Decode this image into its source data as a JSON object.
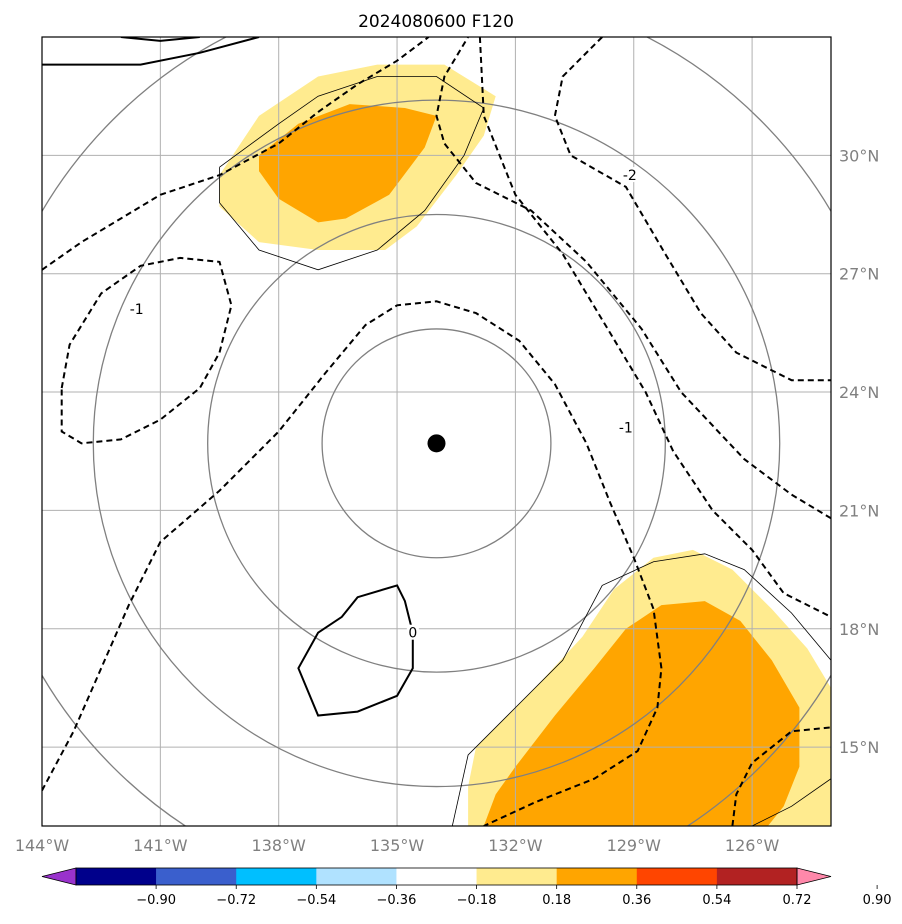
{
  "chart_data": {
    "type": "map-contour",
    "title": "2024080600 F120",
    "map": {
      "lon_range": [
        -144,
        -124
      ],
      "lat_range": [
        13,
        33
      ],
      "x_ticks": [
        {
          "value": -144,
          "label": "144°W"
        },
        {
          "value": -141,
          "label": "141°W"
        },
        {
          "value": -138,
          "label": "138°W"
        },
        {
          "value": -135,
          "label": "135°W"
        },
        {
          "value": -132,
          "label": "132°W"
        },
        {
          "value": -129,
          "label": "129°W"
        },
        {
          "value": -126,
          "label": "126°W"
        }
      ],
      "y_ticks": [
        {
          "value": 30,
          "label": "30°N"
        },
        {
          "value": 27,
          "label": "27°N"
        },
        {
          "value": 24,
          "label": "24°N"
        },
        {
          "value": 21,
          "label": "21°N"
        },
        {
          "value": 18,
          "label": "18°N"
        },
        {
          "value": 15,
          "label": "15°N"
        }
      ],
      "grid": true,
      "y_tick_side": "right"
    },
    "center_marker": {
      "lon": -134,
      "lat": 22.7,
      "color": "#000000"
    },
    "range_rings": {
      "center_lon": -134,
      "center_lat": 22.7,
      "radii_deg": [
        2.9,
        5.8,
        8.7,
        11.6
      ],
      "color": "#808080"
    },
    "filled_contours": [
      {
        "level": 0.18,
        "color": "#ffeb8f",
        "polygon": [
          [
            -139.5,
            29.5
          ],
          [
            -138.5,
            31.0
          ],
          [
            -137.0,
            32.0
          ],
          [
            -135.5,
            32.3
          ],
          [
            -133.8,
            32.3
          ],
          [
            -132.5,
            31.5
          ],
          [
            -132.8,
            30.5
          ],
          [
            -133.5,
            29.5
          ],
          [
            -134.5,
            28.2
          ],
          [
            -135.3,
            27.6
          ],
          [
            -137.0,
            27.6
          ],
          [
            -138.5,
            27.8
          ],
          [
            -139.5,
            28.7
          ]
        ]
      },
      {
        "level": 0.36,
        "color": "#ffa500",
        "polygon": [
          [
            -138.5,
            30.0
          ],
          [
            -137.5,
            30.8
          ],
          [
            -136.2,
            31.3
          ],
          [
            -134.8,
            31.2
          ],
          [
            -134.0,
            31.0
          ],
          [
            -134.3,
            30.2
          ],
          [
            -135.2,
            29.0
          ],
          [
            -136.3,
            28.4
          ],
          [
            -137.0,
            28.3
          ],
          [
            -138.0,
            28.9
          ],
          [
            -138.5,
            29.6
          ]
        ]
      },
      {
        "level": 0.18,
        "color": "#ffeb8f",
        "polygon": [
          [
            -133.0,
            15.0
          ],
          [
            -131.5,
            16.5
          ],
          [
            -130.3,
            17.8
          ],
          [
            -129.5,
            19.0
          ],
          [
            -128.5,
            19.8
          ],
          [
            -127.5,
            20.0
          ],
          [
            -126.5,
            19.5
          ],
          [
            -125.5,
            18.5
          ],
          [
            -124.6,
            17.5
          ],
          [
            -124.0,
            16.5
          ],
          [
            -124.0,
            13.0
          ],
          [
            -133.2,
            13.0
          ],
          [
            -133.2,
            14.0
          ]
        ]
      },
      {
        "level": 0.36,
        "color": "#ffa500",
        "polygon": [
          [
            -132.0,
            14.5
          ],
          [
            -131.0,
            15.8
          ],
          [
            -130.0,
            17.0
          ],
          [
            -129.2,
            18.0
          ],
          [
            -128.3,
            18.6
          ],
          [
            -127.2,
            18.7
          ],
          [
            -126.3,
            18.2
          ],
          [
            -125.5,
            17.2
          ],
          [
            -124.8,
            16.0
          ],
          [
            -124.8,
            14.5
          ],
          [
            -125.2,
            13.5
          ],
          [
            -125.6,
            13.0
          ],
          [
            -132.8,
            13.0
          ],
          [
            -132.5,
            13.8
          ]
        ]
      }
    ],
    "boundary_lines": [
      {
        "style": "thin",
        "points": [
          [
            -139.5,
            29.7
          ],
          [
            -138.0,
            30.8
          ],
          [
            -137.0,
            31.5
          ],
          [
            -135.5,
            32.0
          ],
          [
            -134.0,
            32.0
          ],
          [
            -132.8,
            31.2
          ],
          [
            -133.3,
            30.0
          ],
          [
            -134.3,
            28.6
          ],
          [
            -135.5,
            27.6
          ],
          [
            -137.0,
            27.1
          ],
          [
            -138.5,
            27.6
          ],
          [
            -139.5,
            28.8
          ],
          [
            -139.5,
            29.7
          ]
        ]
      },
      {
        "style": "thin",
        "points": [
          [
            -133.6,
            13.0
          ],
          [
            -133.2,
            14.8
          ],
          [
            -132.0,
            16.0
          ],
          [
            -130.8,
            17.2
          ],
          [
            -129.8,
            19.1
          ],
          [
            -128.5,
            19.7
          ],
          [
            -127.2,
            19.9
          ],
          [
            -126.2,
            19.5
          ],
          [
            -125.0,
            18.4
          ],
          [
            -124.0,
            17.2
          ]
        ]
      },
      {
        "style": "thin",
        "points": [
          [
            -124.0,
            14.2
          ],
          [
            -125.0,
            13.5
          ],
          [
            -126.0,
            13.0
          ]
        ]
      }
    ],
    "dashed_contours": [
      {
        "label": "-1",
        "label_at": [
          -141.6,
          26.1
        ],
        "points": [
          [
            -144.0,
            13.9
          ],
          [
            -143.2,
            15.4
          ],
          [
            -142.5,
            17.0
          ],
          [
            -141.8,
            18.6
          ],
          [
            -141.0,
            20.2
          ],
          [
            -139.5,
            21.5
          ],
          [
            -138.0,
            23.0
          ],
          [
            -136.8,
            24.5
          ],
          [
            -135.8,
            25.7
          ],
          [
            -135.0,
            26.2
          ],
          [
            -134.0,
            26.3
          ],
          [
            -133.0,
            26.0
          ],
          [
            -131.9,
            25.3
          ],
          [
            -131.0,
            24.2
          ],
          [
            -130.2,
            22.7
          ],
          [
            -129.6,
            21.2
          ],
          [
            -129.0,
            19.8
          ],
          [
            -128.5,
            18.5
          ],
          [
            -128.3,
            17.0
          ],
          [
            -128.4,
            16.0
          ],
          [
            -128.9,
            14.9
          ],
          [
            -130.0,
            14.2
          ],
          [
            -131.5,
            13.6
          ],
          [
            -132.8,
            13.0
          ]
        ]
      },
      {
        "label": "-1",
        "label_at": [
          -129.2,
          23.1
        ],
        "points": [
          [
            -132.9,
            33.0
          ],
          [
            -132.8,
            31.0
          ],
          [
            -132.0,
            29.0
          ],
          [
            -130.8,
            27.5
          ],
          [
            -129.6,
            25.5
          ],
          [
            -128.7,
            24.0
          ],
          [
            -128.0,
            22.5
          ],
          [
            -127.0,
            21.0
          ],
          [
            -126.0,
            20.0
          ],
          [
            -125.2,
            18.9
          ],
          [
            -124.0,
            18.3
          ]
        ]
      },
      {
        "label": "-2",
        "label_at": [
          -129.1,
          29.5
        ],
        "points": [
          [
            -129.8,
            33.0
          ],
          [
            -130.8,
            32.0
          ],
          [
            -131.0,
            31.0
          ],
          [
            -130.6,
            30.0
          ],
          [
            -129.2,
            29.2
          ],
          [
            -128.2,
            27.5
          ],
          [
            -127.3,
            26.0
          ],
          [
            -126.4,
            25.0
          ],
          [
            -125.0,
            24.3
          ],
          [
            -124.0,
            24.3
          ]
        ]
      },
      {
        "label": "",
        "label_at": null,
        "points": [
          [
            -124.0,
            20.8
          ],
          [
            -125.0,
            21.4
          ],
          [
            -126.2,
            22.3
          ],
          [
            -127.8,
            24.0
          ],
          [
            -128.8,
            25.6
          ],
          [
            -130.2,
            27.3
          ],
          [
            -131.6,
            28.6
          ],
          [
            -133.0,
            29.3
          ],
          [
            -133.8,
            30.3
          ],
          [
            -134.0,
            31.0
          ],
          [
            -133.8,
            32.0
          ],
          [
            -133.2,
            33.0
          ]
        ]
      },
      {
        "label": "",
        "label_at": null,
        "points": [
          [
            -144.0,
            27.1
          ],
          [
            -143.0,
            27.8
          ],
          [
            -142.0,
            28.4
          ],
          [
            -141.0,
            29.0
          ],
          [
            -139.5,
            29.5
          ],
          [
            -138.0,
            30.3
          ],
          [
            -137.0,
            31.1
          ],
          [
            -136.0,
            31.8
          ],
          [
            -135.0,
            32.4
          ],
          [
            -134.2,
            33.0
          ]
        ]
      },
      {
        "label": "",
        "label_at": null,
        "points": [
          [
            -143.5,
            24.1
          ],
          [
            -143.3,
            25.2
          ],
          [
            -142.5,
            26.5
          ],
          [
            -141.5,
            27.2
          ],
          [
            -140.5,
            27.4
          ],
          [
            -139.5,
            27.3
          ],
          [
            -139.2,
            26.2
          ],
          [
            -139.5,
            25.0
          ],
          [
            -140.0,
            24.1
          ],
          [
            -141.0,
            23.3
          ],
          [
            -142.0,
            22.8
          ],
          [
            -143.0,
            22.7
          ],
          [
            -143.5,
            23.0
          ],
          [
            -143.5,
            24.1
          ]
        ]
      },
      {
        "label": "",
        "label_at": null,
        "points": [
          [
            -126.5,
            13.0
          ],
          [
            -126.4,
            13.8
          ],
          [
            -126.0,
            14.6
          ],
          [
            -125.0,
            15.4
          ],
          [
            -124.0,
            15.5
          ]
        ]
      }
    ],
    "solid_contours": [
      {
        "label": "0",
        "label_at": [
          -134.6,
          17.9
        ],
        "points": [
          [
            -134.6,
            17.9
          ],
          [
            -134.8,
            18.7
          ],
          [
            -135.0,
            19.1
          ],
          [
            -136.0,
            18.8
          ],
          [
            -136.4,
            18.3
          ],
          [
            -137.0,
            17.9
          ],
          [
            -137.5,
            17.0
          ],
          [
            -137.0,
            15.8
          ],
          [
            -136.0,
            15.9
          ],
          [
            -135.0,
            16.3
          ],
          [
            -134.6,
            17.0
          ],
          [
            -134.6,
            17.9
          ]
        ]
      },
      {
        "label": "",
        "label_at": null,
        "points": [
          [
            -144.0,
            32.3
          ],
          [
            -143.0,
            32.3
          ],
          [
            -141.5,
            32.3
          ],
          [
            -140.0,
            32.6
          ],
          [
            -138.5,
            33.0
          ]
        ]
      },
      {
        "label": "",
        "label_at": null,
        "points": [
          [
            -142.0,
            33.0
          ],
          [
            -141.0,
            32.9
          ],
          [
            -140.0,
            33.0
          ]
        ]
      }
    ],
    "colorbar": {
      "colors": [
        "#9932cc",
        "#00008b",
        "#3a5fcd",
        "#00bfff",
        "#b0e2ff",
        "#ffffff",
        "#ffeb8f",
        "#ffa500",
        "#ff4500",
        "#b22222",
        "#ff88aa"
      ],
      "tick_labels": [
        "−0.90",
        "−0.72",
        "−0.54",
        "−0.36",
        "−0.18",
        "0.18",
        "0.36",
        "0.54",
        "0.72",
        "0.90"
      ],
      "extend": "both"
    }
  }
}
